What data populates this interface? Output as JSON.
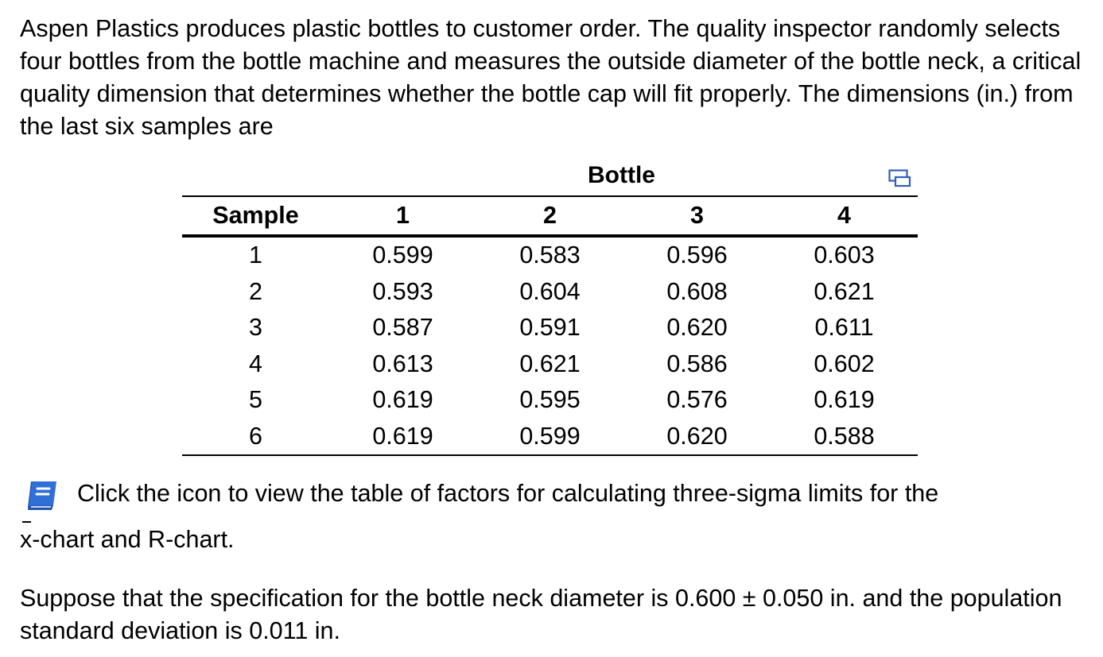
{
  "intro": {
    "text": "Aspen Plastics produces plastic bottles to customer order. The quality inspector randomly selects four bottles from the bottle machine and measures the outside diameter of the bottle neck, a critical quality dimension that determines whether the bottle cap will fit properly. The dimensions (in.) from the last six samples are"
  },
  "table": {
    "group_label": "Bottle",
    "copy_icon": "copy-icon",
    "headers": [
      "Sample",
      "1",
      "2",
      "3",
      "4"
    ],
    "rows": [
      [
        "1",
        "0.599",
        "0.583",
        "0.596",
        "0.603"
      ],
      [
        "2",
        "0.593",
        "0.604",
        "0.608",
        "0.621"
      ],
      [
        "3",
        "0.587",
        "0.591",
        "0.620",
        "0.611"
      ],
      [
        "4",
        "0.613",
        "0.621",
        "0.586",
        "0.602"
      ],
      [
        "5",
        "0.619",
        "0.595",
        "0.576",
        "0.619"
      ],
      [
        "6",
        "0.619",
        "0.599",
        "0.620",
        "0.588"
      ]
    ]
  },
  "note": {
    "icon": "book-icon",
    "icon_color": "#2f6fd6",
    "line1": "Click the icon to view the table of factors for calculating three-sigma limits for the",
    "xbar_symbol": "x",
    "line2_rest": "-chart and R-chart."
  },
  "spec": {
    "text": "Suppose that the specification for the bottle neck diameter is 0.600 ± 0.050 in. and the population standard deviation is 0.011 in."
  }
}
